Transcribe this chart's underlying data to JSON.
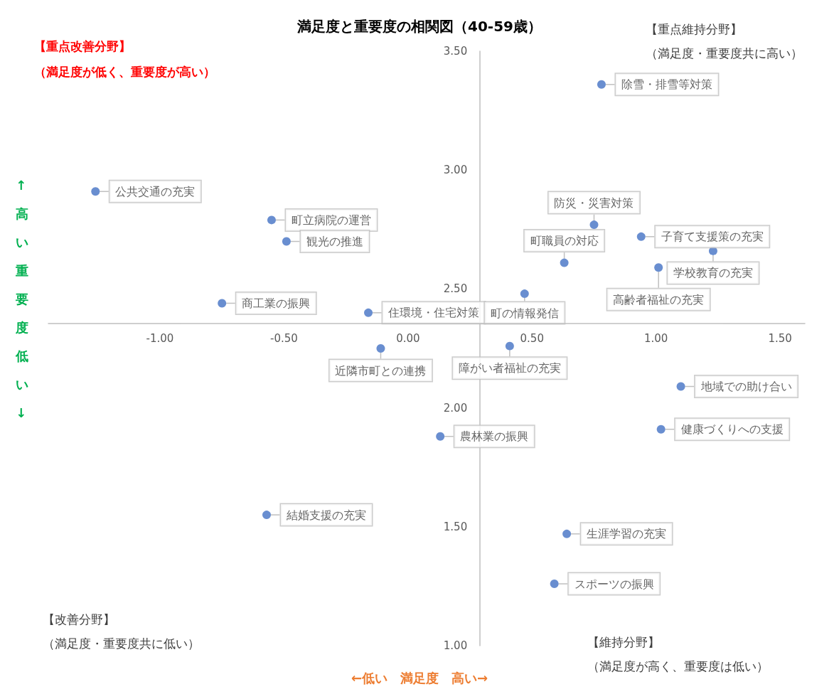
{
  "chart_data": {
    "type": "scatter",
    "title": "満足度と重要度の相関図（40-59歳）",
    "xlabel": "←低い　満足度　高い→",
    "ylabel": "↑高い重要度低い↓",
    "annotations": [
      "【重点改善分野】",
      "（満足度が低く、重要度が高い）",
      "【重点維持分野】",
      "（満足度・重要度共に高い）",
      "【改善分野】",
      "（満足度・重要度共に低い）",
      "【維持分野】",
      "（満足度が高く、重要度は低い）"
    ],
    "series": [
      {
        "color": "#4472c4",
        "x": [
          0.78,
          -1.26,
          -0.55,
          -0.49,
          -0.75,
          -0.16,
          -0.11,
          0.75,
          0.63,
          0.94,
          1.23,
          1.01,
          0.47,
          0.41,
          1.1,
          1.02,
          0.13,
          -0.57,
          0.64,
          0.59
        ],
        "values": [
          3.36,
          2.91,
          2.79,
          2.7,
          2.44,
          2.4,
          2.25,
          2.77,
          2.61,
          2.72,
          2.66,
          2.59,
          2.48,
          2.26,
          2.09,
          1.91,
          1.88,
          1.55,
          1.47,
          1.26
        ],
        "value_labels": [
          "除雪・排雪等対策",
          "公共交通の充実",
          "町立病院の運営",
          "観光の推進",
          "商工業の振興",
          "住環境・住宅対策",
          "近隣市町との連携",
          "防災・災害対策",
          "町職員の対応",
          "子育て支援策の充実",
          "学校教育の充実",
          "高齢者福祉の充実",
          "町の情報発信",
          "障がい者福祉の充実",
          "地域での助け合い",
          "健康づくりへの支援",
          "農林業の振興",
          "結婚支援の充実",
          "生涯学習の充実",
          "スポーツの振興"
        ]
      }
    ],
    "xlim": [
      -1.45,
      1.6
    ],
    "xticks": [
      {
        "value": -1,
        "label": "-1.00"
      },
      {
        "value": -0.5,
        "label": "-0.50"
      },
      {
        "value": 0,
        "label": "0.00"
      },
      {
        "value": 0.5,
        "label": "0.50"
      },
      {
        "value": 1,
        "label": "1.00"
      },
      {
        "value": 1.5,
        "label": "1.50"
      }
    ],
    "ylim": [
      1,
      3.5
    ],
    "yticks": [
      {
        "value": 1,
        "label": "1.00"
      },
      {
        "value": 1.5,
        "label": "1.50"
      },
      {
        "value": 2,
        "label": "2.00"
      },
      {
        "value": 2.5,
        "label": "2.50"
      },
      {
        "value": 3,
        "label": "3.00"
      },
      {
        "value": 3.5,
        "label": "3.50"
      }
    ],
    "marker": "circle",
    "grid": false
  }
}
